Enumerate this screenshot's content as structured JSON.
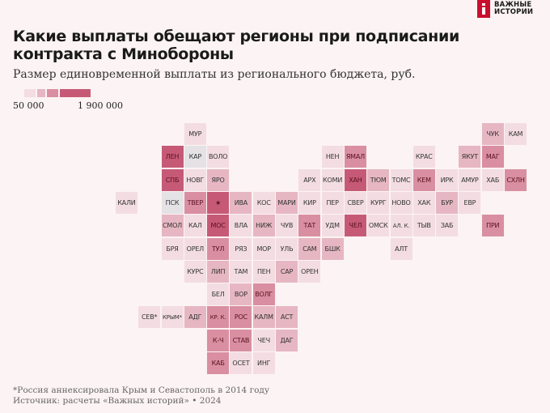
{
  "header": {
    "title": "Какие выплаты обещают регионы при подписании контракта с Минобороны",
    "subtitle": "Размер единовременной выплаты из регионального бюджета, руб.",
    "logo_line1": "ВАЖНЫЕ",
    "logo_line2": "ИСТОРИИ"
  },
  "legend": {
    "min_label": "50 000",
    "max_label": "1 900 000",
    "colors": [
      "#f3dde2",
      "#e6b7c2",
      "#d98fa1",
      "#c65a76"
    ]
  },
  "footer": {
    "footnote": "*Россия аннексировала Крым и Севастополь в 2014 году",
    "source": "Источник: расчеты «Важных историй» • 2024"
  },
  "chart_data": {
    "type": "heatmap",
    "scale_min": 50000,
    "scale_max": 1900000,
    "level_meaning": "1 = lightest, 4 = darkest shade of the color scale",
    "tiles": [
      {
        "label": "МУР",
        "col": 6,
        "row": 0,
        "level": 1
      },
      {
        "label": "ЧУК",
        "col": 19,
        "row": 0,
        "level": 2
      },
      {
        "label": "КАМ",
        "col": 20,
        "row": 0,
        "level": 1
      },
      {
        "label": "ЛЕН",
        "col": 5,
        "row": 1,
        "level": 4
      },
      {
        "label": "КАР",
        "col": 6,
        "row": 1,
        "level": 0
      },
      {
        "label": "ВОЛО",
        "col": 7,
        "row": 1,
        "level": 1
      },
      {
        "label": "НЕН",
        "col": 12,
        "row": 1,
        "level": 1
      },
      {
        "label": "ЯМАЛ",
        "col": 13,
        "row": 1,
        "level": 3
      },
      {
        "label": "КРАС",
        "col": 16,
        "row": 1,
        "level": 1
      },
      {
        "label": "ЯКУТ",
        "col": 18,
        "row": 1,
        "level": 2
      },
      {
        "label": "МАГ",
        "col": 19,
        "row": 1,
        "level": 3
      },
      {
        "label": "СПБ",
        "col": 5,
        "row": 2,
        "level": 4
      },
      {
        "label": "НОВГ",
        "col": 6,
        "row": 2,
        "level": 1
      },
      {
        "label": "ЯРО",
        "col": 7,
        "row": 2,
        "level": 2
      },
      {
        "label": "АРХ",
        "col": 11,
        "row": 2,
        "level": 1
      },
      {
        "label": "КОМИ",
        "col": 12,
        "row": 2,
        "level": 1
      },
      {
        "label": "ХАН",
        "col": 13,
        "row": 2,
        "level": 4
      },
      {
        "label": "ТЮМ",
        "col": 14,
        "row": 2,
        "level": 2
      },
      {
        "label": "ТОМС",
        "col": 15,
        "row": 2,
        "level": 1
      },
      {
        "label": "КЕМ",
        "col": 16,
        "row": 2,
        "level": 3
      },
      {
        "label": "ИРК",
        "col": 17,
        "row": 2,
        "level": 1
      },
      {
        "label": "АМУР",
        "col": 18,
        "row": 2,
        "level": 1
      },
      {
        "label": "ХАБ",
        "col": 19,
        "row": 2,
        "level": 1
      },
      {
        "label": "СХЛН",
        "col": 20,
        "row": 2,
        "level": 3
      },
      {
        "label": "КАЛИ",
        "col": 3,
        "row": 3,
        "level": 1
      },
      {
        "label": "ПСК",
        "col": 5,
        "row": 3,
        "level": 0
      },
      {
        "label": "ТВЕР",
        "col": 6,
        "row": 3,
        "level": 3
      },
      {
        "label": "★",
        "col": 7,
        "row": 3,
        "level": 4
      },
      {
        "label": "ИВА",
        "col": 8,
        "row": 3,
        "level": 2
      },
      {
        "label": "КОС",
        "col": 9,
        "row": 3,
        "level": 1
      },
      {
        "label": "МАРИ",
        "col": 10,
        "row": 3,
        "level": 2
      },
      {
        "label": "КИР",
        "col": 11,
        "row": 3,
        "level": 1
      },
      {
        "label": "ПЕР",
        "col": 12,
        "row": 3,
        "level": 1
      },
      {
        "label": "СВЕР",
        "col": 13,
        "row": 3,
        "level": 1
      },
      {
        "label": "КУРГ",
        "col": 14,
        "row": 3,
        "level": 1
      },
      {
        "label": "НОВО",
        "col": 15,
        "row": 3,
        "level": 1
      },
      {
        "label": "ХАК",
        "col": 16,
        "row": 3,
        "level": 1
      },
      {
        "label": "БУР",
        "col": 17,
        "row": 3,
        "level": 2
      },
      {
        "label": "ЕВР",
        "col": 18,
        "row": 3,
        "level": 1
      },
      {
        "label": "СМОЛ",
        "col": 5,
        "row": 4,
        "level": 2
      },
      {
        "label": "КАЛ",
        "col": 6,
        "row": 4,
        "level": 1
      },
      {
        "label": "МОС",
        "col": 7,
        "row": 4,
        "level": 4
      },
      {
        "label": "ВЛА",
        "col": 8,
        "row": 4,
        "level": 1
      },
      {
        "label": "НИЖ",
        "col": 9,
        "row": 4,
        "level": 2
      },
      {
        "label": "ЧУВ",
        "col": 10,
        "row": 4,
        "level": 1
      },
      {
        "label": "ТАТ",
        "col": 11,
        "row": 4,
        "level": 3
      },
      {
        "label": "УДМ",
        "col": 12,
        "row": 4,
        "level": 1
      },
      {
        "label": "ЧЕЛ",
        "col": 13,
        "row": 4,
        "level": 4
      },
      {
        "label": "ОМСК",
        "col": 14,
        "row": 4,
        "level": 1
      },
      {
        "label": "АЛ. К.",
        "col": 15,
        "row": 4,
        "level": 1
      },
      {
        "label": "ТЫВ",
        "col": 16,
        "row": 4,
        "level": 1
      },
      {
        "label": "ЗАБ",
        "col": 17,
        "row": 4,
        "level": 1
      },
      {
        "label": "ПРИ",
        "col": 19,
        "row": 4,
        "level": 3
      },
      {
        "label": "БРЯ",
        "col": 5,
        "row": 5,
        "level": 1
      },
      {
        "label": "ОРЕЛ",
        "col": 6,
        "row": 5,
        "level": 1
      },
      {
        "label": "ТУЛ",
        "col": 7,
        "row": 5,
        "level": 3
      },
      {
        "label": "РЯЗ",
        "col": 8,
        "row": 5,
        "level": 1
      },
      {
        "label": "МОР",
        "col": 9,
        "row": 5,
        "level": 1
      },
      {
        "label": "УЛЬ",
        "col": 10,
        "row": 5,
        "level": 1
      },
      {
        "label": "САМ",
        "col": 11,
        "row": 5,
        "level": 2
      },
      {
        "label": "БШК",
        "col": 12,
        "row": 5,
        "level": 2
      },
      {
        "label": "АЛТ",
        "col": 15,
        "row": 5,
        "level": 1
      },
      {
        "label": "КУРС",
        "col": 6,
        "row": 6,
        "level": 1
      },
      {
        "label": "ЛИП",
        "col": 7,
        "row": 6,
        "level": 2
      },
      {
        "label": "ТАМ",
        "col": 8,
        "row": 6,
        "level": 1
      },
      {
        "label": "ПЕН",
        "col": 9,
        "row": 6,
        "level": 1
      },
      {
        "label": "САР",
        "col": 10,
        "row": 6,
        "level": 2
      },
      {
        "label": "ОРЕН",
        "col": 11,
        "row": 6,
        "level": 1
      },
      {
        "label": "БЕЛ",
        "col": 7,
        "row": 7,
        "level": 1
      },
      {
        "label": "ВОР",
        "col": 8,
        "row": 7,
        "level": 2
      },
      {
        "label": "ВОЛГ",
        "col": 9,
        "row": 7,
        "level": 3
      },
      {
        "label": "СЕВ*",
        "col": 4,
        "row": 8,
        "level": 1
      },
      {
        "label": "КРЫМ*",
        "col": 5,
        "row": 8,
        "level": 1
      },
      {
        "label": "АДГ",
        "col": 6,
        "row": 8,
        "level": 2
      },
      {
        "label": "КР. К.",
        "col": 7,
        "row": 8,
        "level": 3
      },
      {
        "label": "РОС",
        "col": 8,
        "row": 8,
        "level": 3
      },
      {
        "label": "КАЛМ",
        "col": 9,
        "row": 8,
        "level": 2
      },
      {
        "label": "АСТ",
        "col": 10,
        "row": 8,
        "level": 2
      },
      {
        "label": "К-Ч",
        "col": 7,
        "row": 9,
        "level": 3
      },
      {
        "label": "СТАВ",
        "col": 8,
        "row": 9,
        "level": 3
      },
      {
        "label": "ЧЕЧ",
        "col": 9,
        "row": 9,
        "level": 1
      },
      {
        "label": "ДАГ",
        "col": 10,
        "row": 9,
        "level": 2
      },
      {
        "label": "КАБ",
        "col": 7,
        "row": 10,
        "level": 3
      },
      {
        "label": "ОСЕТ",
        "col": 8,
        "row": 10,
        "level": 1
      },
      {
        "label": "ИНГ",
        "col": 9,
        "row": 10,
        "level": 1
      }
    ]
  }
}
